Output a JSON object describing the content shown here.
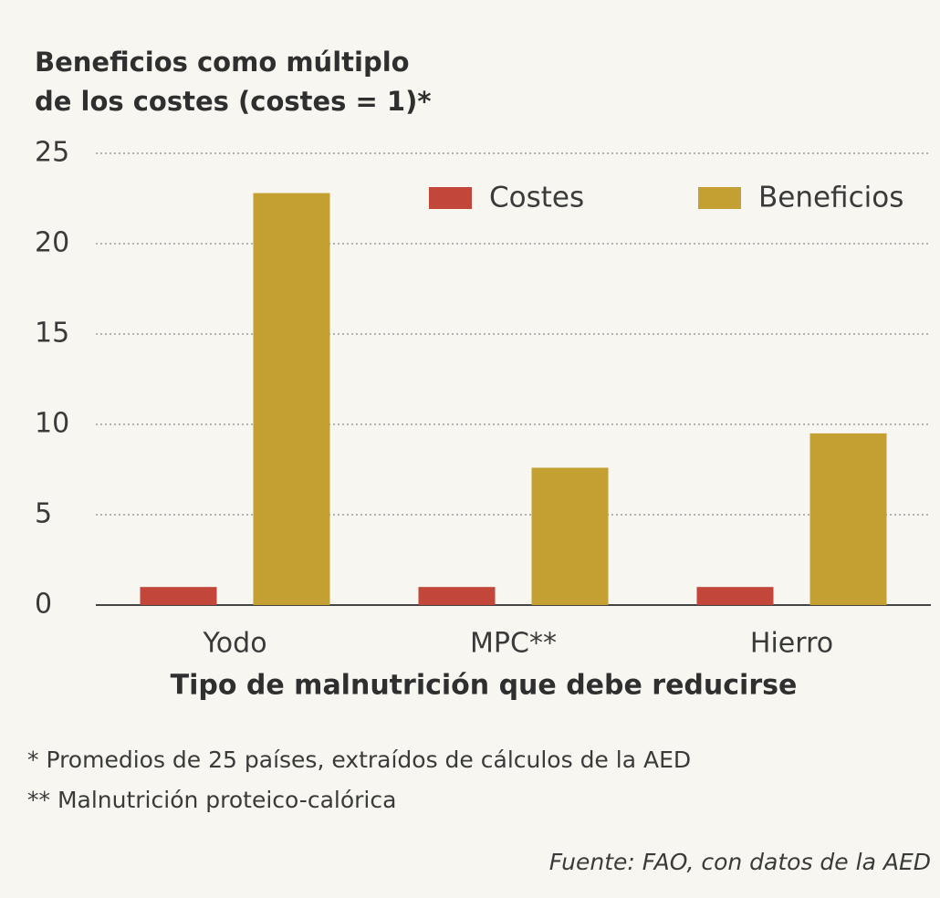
{
  "chart_data": {
    "type": "bar",
    "title": [
      "Beneficios como múltiplo",
      "de los costes (costes = 1)*"
    ],
    "x_label": "Tipo de malnutrición que debe reducirse",
    "categories": [
      "Yodo",
      "MPC**",
      "Hierro"
    ],
    "series": [
      {
        "name": "Costes",
        "color": "#c2463a",
        "values": [
          1,
          1,
          1
        ]
      },
      {
        "name": "Beneficios",
        "color": "#c4a033",
        "values": [
          22.8,
          7.6,
          9.5
        ]
      }
    ],
    "ylim": [
      0,
      25
    ],
    "yticks": [
      0,
      5,
      10,
      15,
      20,
      25
    ],
    "grid": true,
    "legend": "upper right",
    "notes": [
      "* Promedios de 25 países, extraídos de cálculos de la AED",
      "** Malnutrición proteico-calórica"
    ],
    "source": "Fuente: FAO, con datos de la AED"
  }
}
